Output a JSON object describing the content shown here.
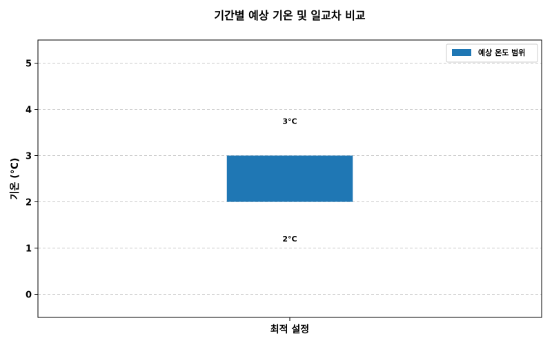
{
  "chart_data": {
    "type": "bar",
    "title": "기간별 예상 기온 및 일교차 비교",
    "ylabel": "기온 (°C)",
    "xlabel": "",
    "categories": [
      "최적 설정"
    ],
    "series": [
      {
        "name": "예상 온도 범위",
        "low": [
          2
        ],
        "high": [
          3
        ],
        "color": "#1f77b4"
      }
    ],
    "data_labels": {
      "low": [
        "2°C"
      ],
      "high": [
        "3°C"
      ]
    },
    "ylim": [
      -0.5,
      5.5
    ],
    "yticks": [
      0,
      1,
      2,
      3,
      4,
      5
    ],
    "grid": "y-dashed",
    "legend_position": "top-right"
  }
}
